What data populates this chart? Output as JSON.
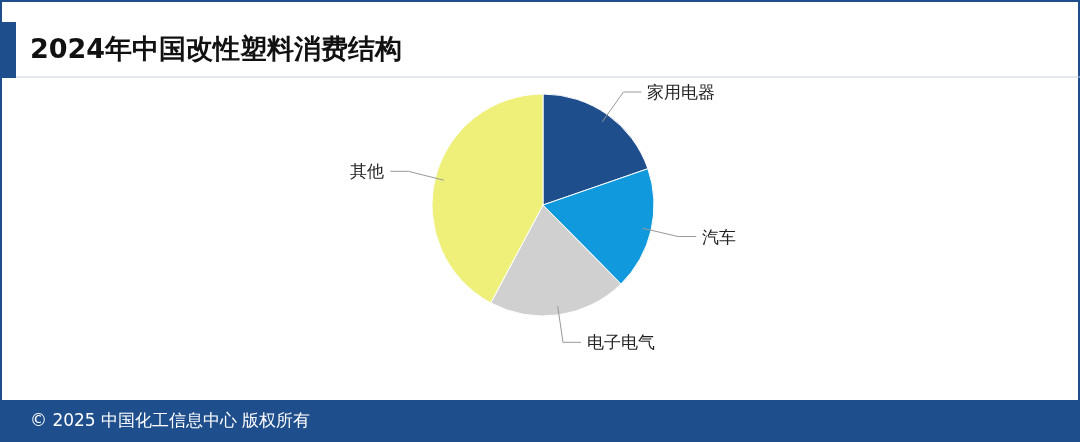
{
  "chart_data": {
    "type": "pie",
    "title": "2024年中国改性塑料消费结构",
    "categories": [
      "家用电器",
      "汽车",
      "电子电气",
      "其他"
    ],
    "values": [
      19.7,
      17.9,
      20.2,
      42.2
    ],
    "colors": [
      "#1f4e8c",
      "#1199dd",
      "#d0d0d0",
      "#eef07a"
    ],
    "annotations": [
      "© 2025 中国化工信息中心  版权所有"
    ]
  }
}
